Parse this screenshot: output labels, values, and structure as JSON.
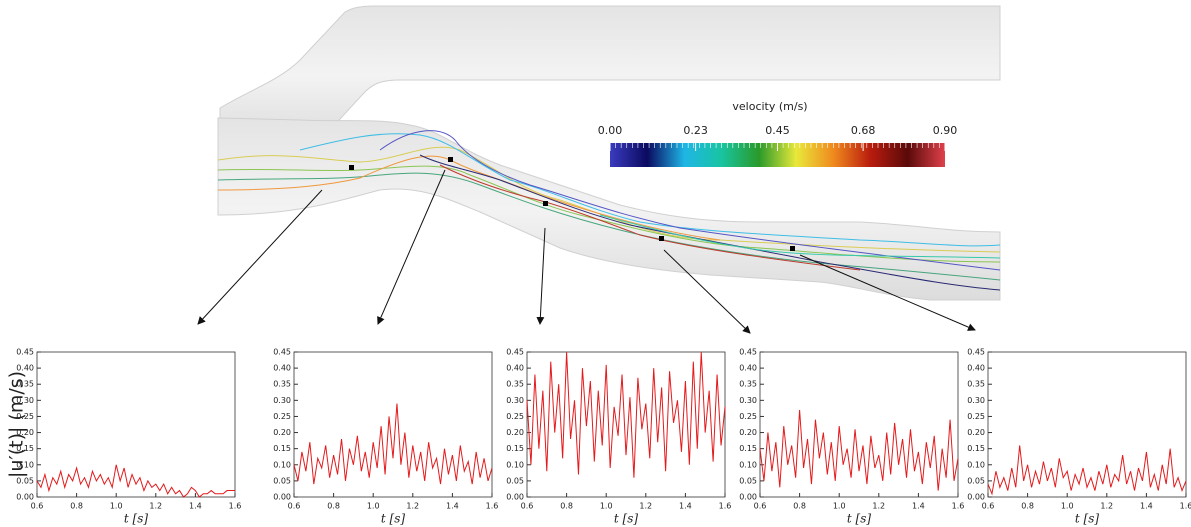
{
  "colorbar": {
    "title": "velocity (m/s)",
    "lim": [
      0,
      0.9
    ],
    "ticks": [
      {
        "value": 0,
        "label": "0.00"
      },
      {
        "value": 0.23,
        "label": "0.23"
      },
      {
        "value": 0.45,
        "label": "0.45"
      },
      {
        "value": 0.68,
        "label": "0.68"
      },
      {
        "value": 0.9,
        "label": "0.90"
      }
    ],
    "colors": [
      "#3b3bc0",
      "#0a0a60",
      "#1fb6e6",
      "#18c4a0",
      "#2a9a2a",
      "#e8e83a",
      "#f08a1e",
      "#b81c0e",
      "#5a0a0a",
      "#e0404a"
    ]
  },
  "chart_data": [
    {
      "type": "line",
      "ylabel": "|u′(t)| (m/s)",
      "xlabel": "t   [s]",
      "color": "#e41a1c",
      "x": [
        0.6,
        0.62,
        0.64,
        0.66,
        0.68,
        0.7,
        0.72,
        0.74,
        0.76,
        0.78,
        0.8,
        0.82,
        0.84,
        0.86,
        0.88,
        0.9,
        0.92,
        0.94,
        0.96,
        0.98,
        1.0,
        1.02,
        1.04,
        1.06,
        1.08,
        1.1,
        1.12,
        1.14,
        1.16,
        1.18,
        1.2,
        1.22,
        1.24,
        1.26,
        1.28,
        1.3,
        1.32,
        1.34,
        1.36,
        1.38,
        1.4,
        1.42,
        1.44,
        1.46,
        1.48,
        1.5,
        1.52,
        1.54,
        1.56,
        1.58,
        1.6
      ],
      "values": [
        0.05,
        0.03,
        0.07,
        0.02,
        0.06,
        0.04,
        0.08,
        0.03,
        0.07,
        0.05,
        0.09,
        0.04,
        0.06,
        0.03,
        0.08,
        0.05,
        0.07,
        0.04,
        0.06,
        0.03,
        0.1,
        0.05,
        0.09,
        0.03,
        0.07,
        0.04,
        0.06,
        0.02,
        0.05,
        0.03,
        0.04,
        0.02,
        0.04,
        0.01,
        0.03,
        0.01,
        0.02,
        0.0,
        0.01,
        0.03,
        0.02,
        0.0,
        0.01,
        0.01,
        0.02,
        0.01,
        0.01,
        0.01,
        0.02,
        0.02,
        0.02
      ],
      "xlim": [
        0.6,
        1.6
      ],
      "ylim": [
        0,
        0.45
      ],
      "xticks": [
        0.6,
        0.8,
        {
          "value": 1,
          "label": "1.0"
        },
        1.2,
        1.4,
        1.6
      ],
      "yticks": [
        {
          "value": 0,
          "label": "0.00"
        },
        {
          "value": 0.05,
          "label": "0.05"
        },
        {
          "value": 0.1,
          "label": "0.10"
        },
        {
          "value": 0.15,
          "label": "0.15"
        },
        {
          "value": 0.2,
          "label": "0.20"
        },
        {
          "value": 0.25,
          "label": "0.25"
        },
        {
          "value": 0.3,
          "label": "0.30"
        },
        {
          "value": 0.35,
          "label": "0.35"
        },
        {
          "value": 0.4,
          "label": "0.40"
        },
        {
          "value": 0.45,
          "label": "0.45"
        }
      ]
    },
    {
      "type": "line",
      "xlabel": "t   [s]",
      "color": "#e41a1c",
      "x": [
        0.6,
        0.62,
        0.64,
        0.66,
        0.68,
        0.7,
        0.72,
        0.74,
        0.76,
        0.78,
        0.8,
        0.82,
        0.84,
        0.86,
        0.88,
        0.9,
        0.92,
        0.94,
        0.96,
        0.98,
        1.0,
        1.02,
        1.04,
        1.06,
        1.08,
        1.1,
        1.12,
        1.14,
        1.16,
        1.18,
        1.2,
        1.22,
        1.24,
        1.26,
        1.28,
        1.3,
        1.32,
        1.34,
        1.36,
        1.38,
        1.4,
        1.42,
        1.44,
        1.46,
        1.48,
        1.5,
        1.52,
        1.54,
        1.56,
        1.58,
        1.6
      ],
      "values": [
        0.1,
        0.05,
        0.14,
        0.08,
        0.17,
        0.04,
        0.12,
        0.09,
        0.16,
        0.06,
        0.13,
        0.07,
        0.18,
        0.05,
        0.15,
        0.1,
        0.19,
        0.08,
        0.14,
        0.06,
        0.17,
        0.09,
        0.22,
        0.07,
        0.25,
        0.12,
        0.29,
        0.1,
        0.2,
        0.06,
        0.16,
        0.08,
        0.14,
        0.05,
        0.17,
        0.09,
        0.12,
        0.04,
        0.15,
        0.07,
        0.13,
        0.05,
        0.16,
        0.08,
        0.11,
        0.04,
        0.14,
        0.06,
        0.12,
        0.05,
        0.09
      ],
      "xlim": [
        0.6,
        1.6
      ],
      "ylim": [
        0,
        0.45
      ],
      "xticks": [
        0.6,
        0.8,
        {
          "value": 1,
          "label": "1.0"
        },
        1.2,
        1.4,
        1.6
      ],
      "yticks": [
        {
          "value": 0,
          "label": "0.00"
        },
        {
          "value": 0.05,
          "label": "0.05"
        },
        {
          "value": 0.1,
          "label": "0.10"
        },
        {
          "value": 0.15,
          "label": "0.15"
        },
        {
          "value": 0.2,
          "label": "0.20"
        },
        {
          "value": 0.25,
          "label": "0.25"
        },
        {
          "value": 0.3,
          "label": "0.30"
        },
        {
          "value": 0.35,
          "label": "0.35"
        },
        {
          "value": 0.4,
          "label": "0.40"
        },
        {
          "value": 0.45,
          "label": "0.45"
        }
      ]
    },
    {
      "type": "line",
      "xlabel": "t   [s]",
      "color": "#e41a1c",
      "x": [
        0.6,
        0.62,
        0.64,
        0.66,
        0.68,
        0.7,
        0.72,
        0.74,
        0.76,
        0.78,
        0.8,
        0.82,
        0.84,
        0.86,
        0.88,
        0.9,
        0.92,
        0.94,
        0.96,
        0.98,
        1.0,
        1.02,
        1.04,
        1.06,
        1.08,
        1.1,
        1.12,
        1.14,
        1.16,
        1.18,
        1.2,
        1.22,
        1.24,
        1.26,
        1.28,
        1.3,
        1.32,
        1.34,
        1.36,
        1.38,
        1.4,
        1.42,
        1.44,
        1.46,
        1.48,
        1.5,
        1.52,
        1.54,
        1.56,
        1.58,
        1.6
      ],
      "values": [
        0.3,
        0.1,
        0.38,
        0.15,
        0.33,
        0.08,
        0.42,
        0.2,
        0.35,
        0.12,
        0.45,
        0.18,
        0.3,
        0.07,
        0.4,
        0.22,
        0.36,
        0.11,
        0.33,
        0.16,
        0.41,
        0.09,
        0.28,
        0.19,
        0.38,
        0.13,
        0.31,
        0.06,
        0.37,
        0.21,
        0.29,
        0.12,
        0.4,
        0.17,
        0.34,
        0.08,
        0.39,
        0.23,
        0.3,
        0.14,
        0.36,
        0.1,
        0.42,
        0.15,
        0.45,
        0.2,
        0.33,
        0.11,
        0.38,
        0.16,
        0.28
      ],
      "xlim": [
        0.6,
        1.6
      ],
      "ylim": [
        0,
        0.45
      ],
      "xticks": [
        0.6,
        0.8,
        {
          "value": 1,
          "label": "1.0"
        },
        1.2,
        1.4,
        1.6
      ],
      "yticks": [
        {
          "value": 0,
          "label": "0.00"
        },
        {
          "value": 0.05,
          "label": "0.05"
        },
        {
          "value": 0.1,
          "label": "0.10"
        },
        {
          "value": 0.15,
          "label": "0.15"
        },
        {
          "value": 0.2,
          "label": "0.20"
        },
        {
          "value": 0.25,
          "label": "0.25"
        },
        {
          "value": 0.3,
          "label": "0.30"
        },
        {
          "value": 0.35,
          "label": "0.35"
        },
        {
          "value": 0.4,
          "label": "0.40"
        },
        {
          "value": 0.45,
          "label": "0.45"
        }
      ]
    },
    {
      "type": "line",
      "xlabel": "t   [s]",
      "color": "#e41a1c",
      "x": [
        0.6,
        0.62,
        0.64,
        0.66,
        0.68,
        0.7,
        0.72,
        0.74,
        0.76,
        0.78,
        0.8,
        0.82,
        0.84,
        0.86,
        0.88,
        0.9,
        0.92,
        0.94,
        0.96,
        0.98,
        1.0,
        1.02,
        1.04,
        1.06,
        1.08,
        1.1,
        1.12,
        1.14,
        1.16,
        1.18,
        1.2,
        1.22,
        1.24,
        1.26,
        1.28,
        1.3,
        1.32,
        1.34,
        1.36,
        1.38,
        1.4,
        1.42,
        1.44,
        1.46,
        1.48,
        1.5,
        1.52,
        1.54,
        1.56,
        1.58,
        1.6
      ],
      "values": [
        0.15,
        0.05,
        0.2,
        0.08,
        0.17,
        0.03,
        0.22,
        0.1,
        0.16,
        0.06,
        0.27,
        0.09,
        0.18,
        0.04,
        0.24,
        0.12,
        0.2,
        0.07,
        0.17,
        0.05,
        0.22,
        0.1,
        0.15,
        0.06,
        0.21,
        0.08,
        0.16,
        0.04,
        0.19,
        0.09,
        0.13,
        0.05,
        0.2,
        0.07,
        0.23,
        0.1,
        0.18,
        0.06,
        0.21,
        0.08,
        0.14,
        0.04,
        0.17,
        0.09,
        0.19,
        0.02,
        0.15,
        0.06,
        0.24,
        0.05,
        0.12
      ],
      "xlim": [
        0.6,
        1.6
      ],
      "ylim": [
        0,
        0.45
      ],
      "xticks": [
        0.6,
        0.8,
        {
          "value": 1,
          "label": "1.0"
        },
        1.2,
        1.4,
        1.6
      ],
      "yticks": [
        {
          "value": 0,
          "label": "0.00"
        },
        {
          "value": 0.05,
          "label": "0.05"
        },
        {
          "value": 0.1,
          "label": "0.10"
        },
        {
          "value": 0.15,
          "label": "0.15"
        },
        {
          "value": 0.2,
          "label": "0.20"
        },
        {
          "value": 0.25,
          "label": "0.25"
        },
        {
          "value": 0.3,
          "label": "0.30"
        },
        {
          "value": 0.35,
          "label": "0.35"
        },
        {
          "value": 0.4,
          "label": "0.40"
        },
        {
          "value": 0.45,
          "label": "0.45"
        }
      ]
    },
    {
      "type": "line",
      "xlabel": "t   [s]",
      "color": "#e41a1c",
      "x": [
        0.6,
        0.62,
        0.64,
        0.66,
        0.68,
        0.7,
        0.72,
        0.74,
        0.76,
        0.78,
        0.8,
        0.82,
        0.84,
        0.86,
        0.88,
        0.9,
        0.92,
        0.94,
        0.96,
        0.98,
        1.0,
        1.02,
        1.04,
        1.06,
        1.08,
        1.1,
        1.12,
        1.14,
        1.16,
        1.18,
        1.2,
        1.22,
        1.24,
        1.26,
        1.28,
        1.3,
        1.32,
        1.34,
        1.36,
        1.38,
        1.4,
        1.42,
        1.44,
        1.46,
        1.48,
        1.5,
        1.52,
        1.54,
        1.56,
        1.58,
        1.6
      ],
      "values": [
        0.04,
        0.01,
        0.08,
        0.03,
        0.06,
        0.02,
        0.09,
        0.03,
        0.16,
        0.05,
        0.1,
        0.03,
        0.08,
        0.04,
        0.11,
        0.05,
        0.09,
        0.03,
        0.12,
        0.06,
        0.08,
        0.02,
        0.07,
        0.04,
        0.09,
        0.03,
        0.06,
        0.02,
        0.08,
        0.04,
        0.1,
        0.03,
        0.07,
        0.05,
        0.13,
        0.04,
        0.08,
        0.02,
        0.09,
        0.05,
        0.14,
        0.03,
        0.07,
        0.02,
        0.1,
        0.04,
        0.15,
        0.03,
        0.06,
        0.02,
        0.05
      ],
      "xlim": [
        0.6,
        1.6
      ],
      "ylim": [
        0,
        0.45
      ],
      "xticks": [
        0.6,
        0.8,
        {
          "value": 1,
          "label": "1.0"
        },
        1.2,
        1.4,
        1.6
      ],
      "yticks": [
        {
          "value": 0,
          "label": "0.00"
        },
        {
          "value": 0.05,
          "label": "0.05"
        },
        {
          "value": 0.1,
          "label": "0.10"
        },
        {
          "value": 0.15,
          "label": "0.15"
        },
        {
          "value": 0.2,
          "label": "0.20"
        },
        {
          "value": 0.25,
          "label": "0.25"
        },
        {
          "value": 0.3,
          "label": "0.30"
        },
        {
          "value": 0.35,
          "label": "0.35"
        },
        {
          "value": 0.4,
          "label": "0.40"
        },
        {
          "value": 0.45,
          "label": "0.45"
        }
      ]
    }
  ]
}
